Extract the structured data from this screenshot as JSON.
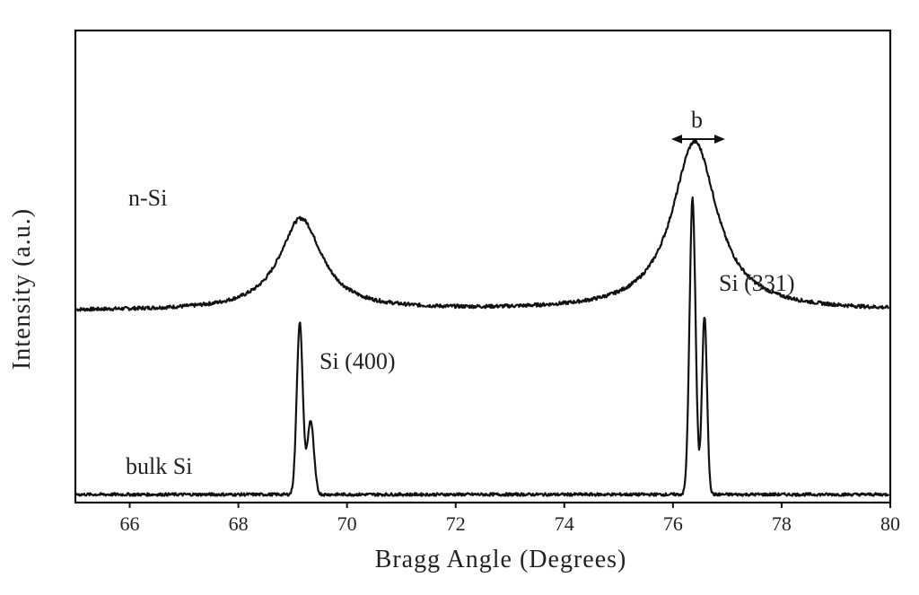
{
  "chart_data": {
    "type": "line",
    "title": "",
    "xlabel": "Bragg Angle (Degrees)",
    "ylabel": "Intensity (a.u.)",
    "xlim": [
      65,
      80
    ],
    "xticks": [
      66,
      68,
      70,
      72,
      74,
      76,
      78,
      80
    ],
    "xtick_labels": [
      "66",
      "68",
      "70",
      "72",
      "74",
      "76",
      "78",
      "80"
    ],
    "grid": false,
    "legend": null,
    "series": [
      {
        "name": "n-Si",
        "label_text": "n-Si",
        "baseline": 0.62,
        "peaks": [
          {
            "center": 69.15,
            "height": 0.31,
            "fwhm": 0.95
          },
          {
            "center": 76.4,
            "height": 0.57,
            "fwhm": 1.0
          }
        ]
      },
      {
        "name": "bulk Si",
        "label_text": "bulk Si",
        "baseline": 0.0,
        "peaks": [
          {
            "center": 69.13,
            "height": 0.58,
            "fwhm": 0.13
          },
          {
            "center": 69.33,
            "height": 0.25,
            "fwhm": 0.14
          },
          {
            "center": 76.36,
            "height": 1.0,
            "fwhm": 0.13
          },
          {
            "center": 76.58,
            "height": 0.6,
            "fwhm": 0.11
          }
        ]
      }
    ],
    "annotations": [
      {
        "text": "Si (400)",
        "x": 69.4,
        "y": 0.46
      },
      {
        "text": "Si (331)",
        "x": 76.5,
        "y": 0.72
      },
      {
        "text": "b",
        "x": 76.45,
        "y": 1.33,
        "note": "FWHM arrow spanning ~75.95 to 76.9"
      }
    ],
    "y_axis_ticks": "none (arbitrary units)"
  },
  "labels": {
    "xlabel": "Bragg Angle (Degrees)",
    "ylabel": "Intensity (a.u.)",
    "nsi": "n-Si",
    "bulk": "bulk Si",
    "si400": "Si (400)",
    "si331": "Si (331)",
    "b": "b"
  }
}
